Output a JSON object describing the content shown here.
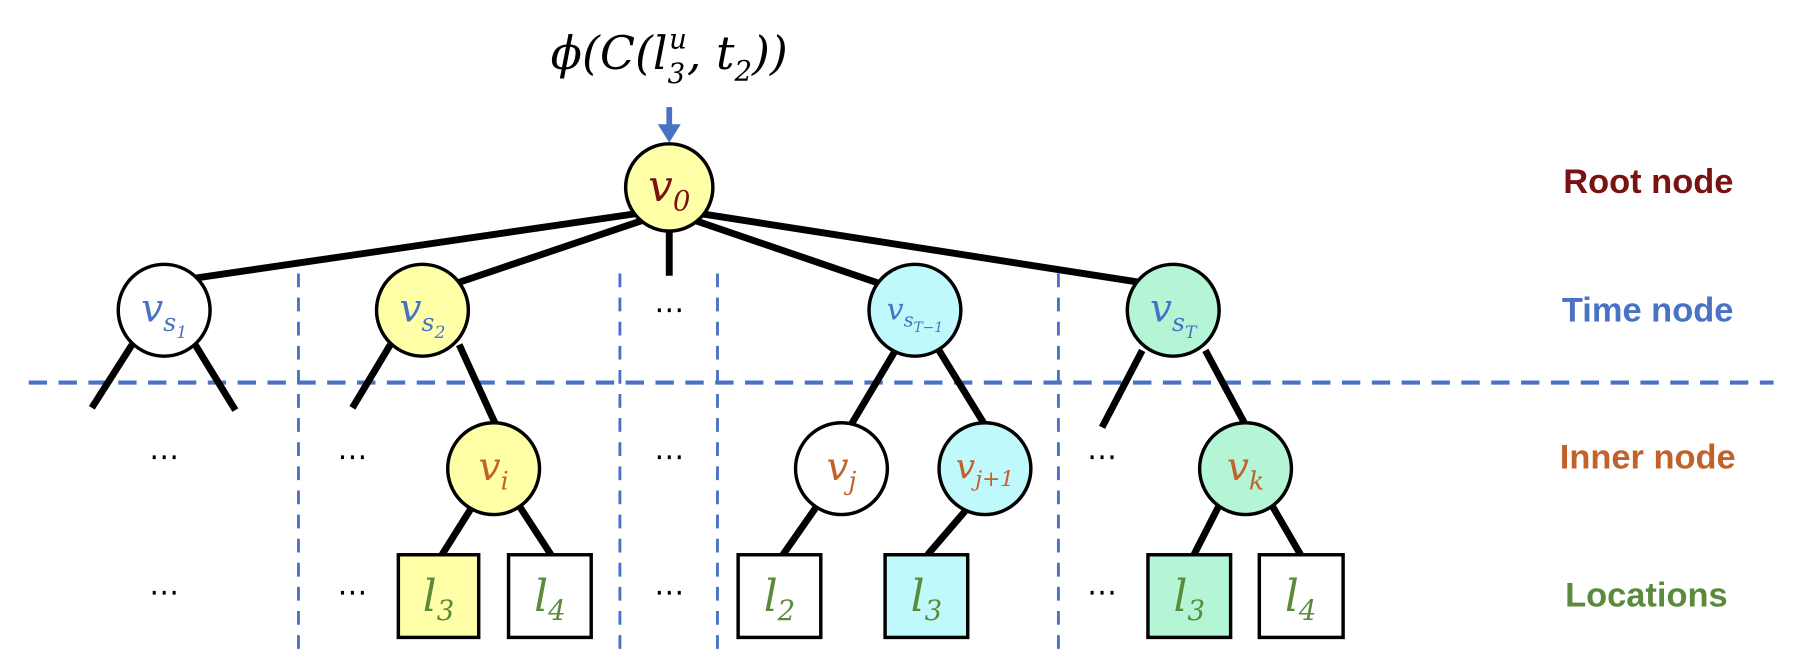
{
  "formula": {
    "phi": "ϕ",
    "open": "(C(",
    "l": "l",
    "l_sub": "3",
    "l_sup": "u",
    "comma": ", t",
    "t_sub": "2",
    "close": "))"
  },
  "levels": {
    "root": {
      "label": "Root node",
      "color": "#7b1212"
    },
    "time": {
      "label": "Time node",
      "color": "#4a72c4"
    },
    "inner": {
      "label": "Inner node",
      "color": "#c0622a"
    },
    "locations": {
      "label": "Locations",
      "color": "#5b8a3a"
    }
  },
  "colors": {
    "yellow": "#ffffa8",
    "cyan": "#bff9fb",
    "green": "#b4f5d6",
    "white": "#ffffff",
    "arrow": "#4a72c4"
  },
  "nodes": {
    "root": {
      "base": "v",
      "sub": "0"
    },
    "time": [
      {
        "base": "v",
        "sub": "s",
        "subsub": "1"
      },
      {
        "base": "v",
        "sub": "s",
        "subsub": "2"
      },
      {
        "base": "v",
        "sub": "s",
        "subsub": "T−1"
      },
      {
        "base": "v",
        "sub": "s",
        "subsub": "T"
      }
    ],
    "inner": [
      {
        "base": "v",
        "sub": "i"
      },
      {
        "base": "v",
        "sub": "j"
      },
      {
        "base": "v",
        "sub": "j+1"
      },
      {
        "base": "v",
        "sub": "k"
      }
    ],
    "locations": [
      {
        "base": "l",
        "sub": "3"
      },
      {
        "base": "l",
        "sub": "4"
      },
      {
        "base": "l",
        "sub": "2"
      },
      {
        "base": "l",
        "sub": "3"
      },
      {
        "base": "l",
        "sub": "3"
      },
      {
        "base": "l",
        "sub": "4"
      }
    ]
  },
  "ellipsis": "⋯"
}
